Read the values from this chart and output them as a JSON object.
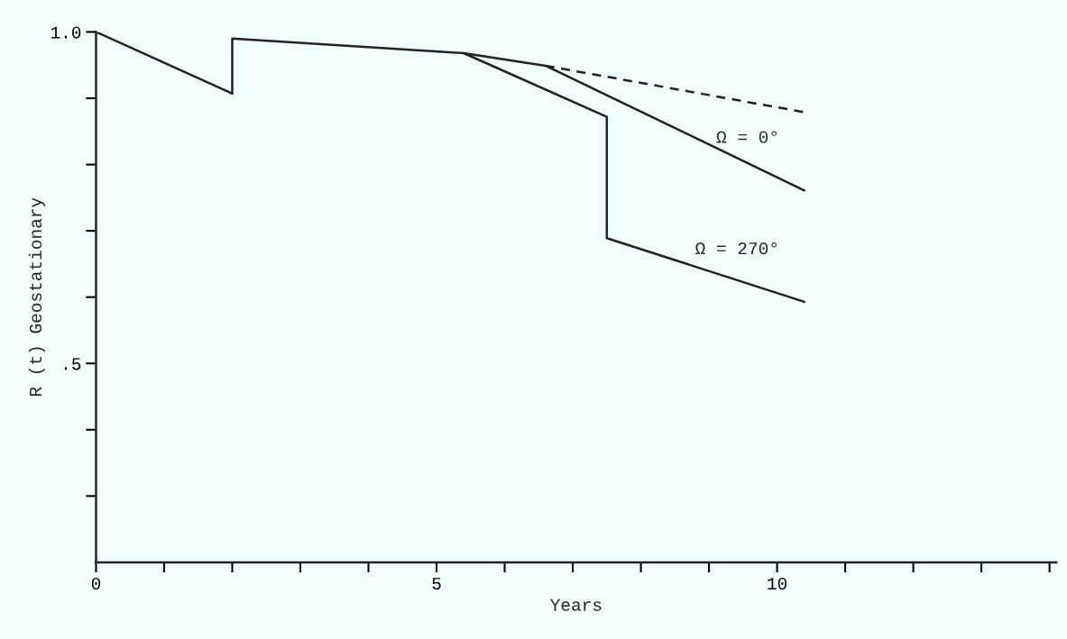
{
  "chart_data": {
    "type": "line",
    "xlabel": "Years",
    "ylabel": "R (t) Geostationary",
    "xlim": [
      0,
      14.1
    ],
    "ylim": [
      0.2,
      1.0
    ],
    "xticks": [
      0,
      {
        "value": 1,
        "label": null
      },
      {
        "value": 2,
        "label": null
      },
      {
        "value": 3,
        "label": null
      },
      {
        "value": 4,
        "label": null
      },
      5,
      {
        "value": 6,
        "label": null
      },
      {
        "value": 7,
        "label": null
      },
      {
        "value": 8,
        "label": null
      },
      {
        "value": 9,
        "label": null
      },
      10,
      {
        "value": 11,
        "label": null
      },
      {
        "value": 12,
        "label": null
      },
      {
        "value": 13,
        "label": null
      },
      {
        "value": 14,
        "label": null
      }
    ],
    "yticks": [
      {
        "value": 0.3,
        "label": null
      },
      {
        "value": 0.4,
        "label": null
      },
      {
        "value": 0.5,
        "label": ".5"
      },
      {
        "value": 0.6,
        "label": null
      },
      {
        "value": 0.7,
        "label": null
      },
      {
        "value": 0.8,
        "label": null
      },
      {
        "value": 0.9,
        "label": null
      },
      {
        "value": 1.0,
        "label": "1.0"
      }
    ],
    "grid": false,
    "legend": false,
    "marker": "none",
    "series": [
      {
        "name": "Ω = 0°",
        "color": "#222222",
        "line_style": "solid",
        "x": [
          0,
          2,
          2,
          5.4,
          6.6,
          10.4
        ],
        "values": [
          1.0,
          0.907,
          0.99,
          0.968,
          0.949,
          0.761
        ]
      },
      {
        "name": "Ω = 270°",
        "color": "#222222",
        "line_style": "solid",
        "x": [
          5.4,
          7.5,
          7.5,
          10.4
        ],
        "values": [
          0.968,
          0.872,
          0.689,
          0.593
        ]
      },
      {
        "color": "#222222",
        "line_style": "dashed",
        "x": [
          6.6,
          10.4
        ],
        "values": [
          0.949,
          0.879
        ]
      }
    ]
  }
}
